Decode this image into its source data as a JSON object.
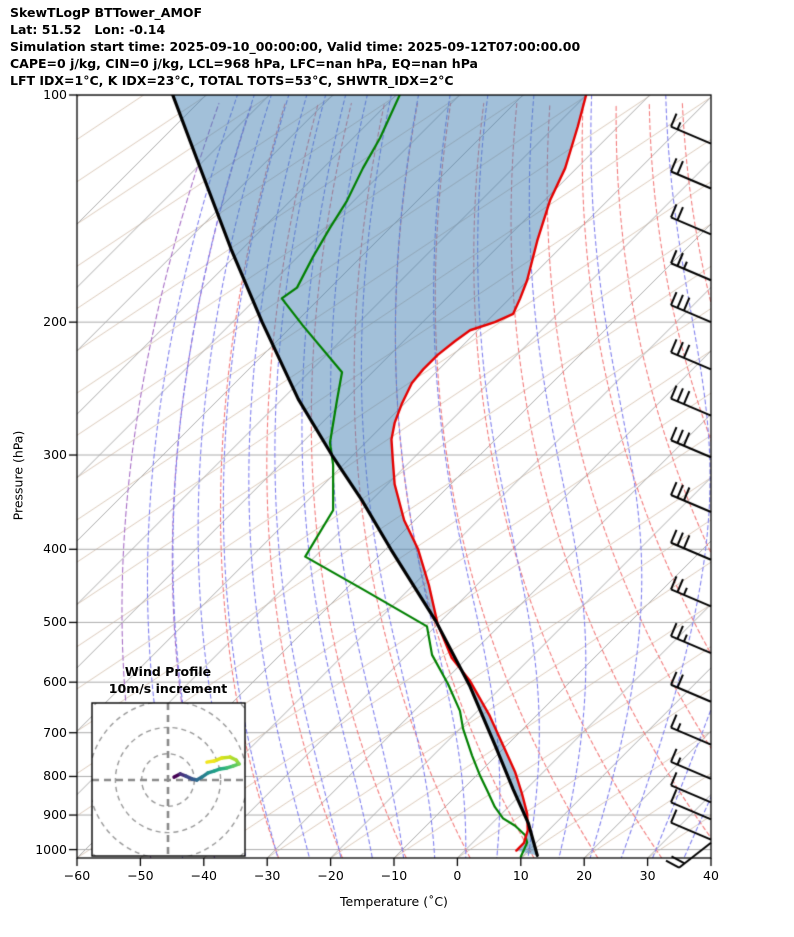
{
  "header": {
    "line1": "SkewTLogP BTTower_AMOF",
    "line2": "Lat: 51.52   Lon: -0.14",
    "line3": "Simulation start time: 2025-09-10_00:00:00, Valid time: 2025-09-12T07:00:00.00",
    "line4": "CAPE=0 j/kg, CIN=0 j/kg, LCL=968 hPa, LFC=nan hPa, EQ=nan hPa",
    "line5": "LFT IDX=1°C, K IDX=23°C, TOTAL TOTS=53°C, SHWTR_IDX=2°C"
  },
  "axes": {
    "y_label": "Pressure (hPa)",
    "x_label": "Temperature (˚C)",
    "y_ticks": [
      100,
      200,
      300,
      400,
      500,
      600,
      700,
      800,
      900,
      1000
    ],
    "x_ticks": [
      -60,
      -50,
      -40,
      -30,
      -20,
      -10,
      0,
      10,
      20,
      30,
      40
    ],
    "p_range": [
      100,
      1026
    ],
    "t_range": [
      -60,
      40
    ],
    "y_scale": "log"
  },
  "chart_data": {
    "type": "skewt-logp",
    "note": "curve points are [temperature_axis_value_C, pressure_hPa]; temperature value is the skewed x-axis coordinate directly below the point",
    "temperature_curve": [
      [
        20.3,
        100
      ],
      [
        19.0,
        110
      ],
      [
        17.0,
        125
      ],
      [
        14.6,
        138
      ],
      [
        12.6,
        156
      ],
      [
        11.0,
        176
      ],
      [
        9.9,
        186
      ],
      [
        8.8,
        195
      ],
      [
        5.9,
        200
      ],
      [
        2.0,
        205
      ],
      [
        -0.4,
        212
      ],
      [
        -3.1,
        221
      ],
      [
        -5.4,
        231
      ],
      [
        -7.2,
        241
      ],
      [
        -8.8,
        257
      ],
      [
        -9.9,
        272
      ],
      [
        -10.4,
        286
      ],
      [
        -10.2,
        304
      ],
      [
        -9.9,
        328
      ],
      [
        -8.4,
        366
      ],
      [
        -6.2,
        400
      ],
      [
        -4.5,
        446
      ],
      [
        -3.1,
        503
      ],
      [
        -0.9,
        557
      ],
      [
        2.0,
        598
      ],
      [
        5.1,
        665
      ],
      [
        7.5,
        737
      ],
      [
        9.1,
        789
      ],
      [
        10.2,
        844
      ],
      [
        11.0,
        896
      ],
      [
        11.1,
        943
      ],
      [
        10.5,
        980
      ],
      [
        9.3,
        1003
      ]
    ],
    "dewpoint_curve": [
      [
        -9.1,
        100
      ],
      [
        -12.2,
        114
      ],
      [
        -14.9,
        125
      ],
      [
        -17.4,
        138
      ],
      [
        -20.1,
        150
      ],
      [
        -22.8,
        164
      ],
      [
        -25.3,
        180
      ],
      [
        -27.7,
        186
      ],
      [
        -24.4,
        202
      ],
      [
        -18.2,
        233
      ],
      [
        -19.0,
        254
      ],
      [
        -20.1,
        289
      ],
      [
        -19.6,
        309
      ],
      [
        -19.6,
        355
      ],
      [
        -24.0,
        409
      ],
      [
        -14.9,
        452
      ],
      [
        -4.8,
        506
      ],
      [
        -4.0,
        552
      ],
      [
        -1.5,
        603
      ],
      [
        0.4,
        655
      ],
      [
        0.9,
        692
      ],
      [
        2.3,
        750
      ],
      [
        3.6,
        799
      ],
      [
        4.7,
        835
      ],
      [
        5.9,
        878
      ],
      [
        7.2,
        909
      ],
      [
        9.1,
        930
      ],
      [
        10.7,
        957
      ],
      [
        11.0,
        979
      ],
      [
        10.0,
        1022
      ]
    ],
    "parcel_curve": [
      [
        -44.9,
        100
      ],
      [
        -40.4,
        126
      ],
      [
        -35.7,
        160
      ],
      [
        -30.8,
        200
      ],
      [
        -25.1,
        253
      ],
      [
        -19.8,
        300
      ],
      [
        -15.1,
        344
      ],
      [
        -10.5,
        400
      ],
      [
        -3.4,
        498
      ],
      [
        2.0,
        608
      ],
      [
        5.9,
        726
      ],
      [
        8.8,
        832
      ],
      [
        11.2,
        923
      ],
      [
        12.6,
        1018
      ]
    ],
    "shading": {
      "between": [
        "parcel_curve",
        "temperature_curve"
      ],
      "color": "rgba(70,130,180,0.5)"
    },
    "wind_barbs": {
      "units": "m/s, full barb = 10, half barb = 5",
      "levels": [
        {
          "p": 116,
          "full": 1,
          "half": 1
        },
        {
          "p": 133,
          "full": 2,
          "half": 0
        },
        {
          "p": 153,
          "full": 2,
          "half": 0
        },
        {
          "p": 176,
          "full": 2,
          "half": 1
        },
        {
          "p": 200,
          "full": 3,
          "half": 0
        },
        {
          "p": 231,
          "full": 3,
          "half": 0
        },
        {
          "p": 266,
          "full": 3,
          "half": 0
        },
        {
          "p": 302,
          "full": 3,
          "half": 0
        },
        {
          "p": 357,
          "full": 3,
          "half": 0
        },
        {
          "p": 413,
          "full": 3,
          "half": 0
        },
        {
          "p": 476,
          "full": 2,
          "half": 1
        },
        {
          "p": 549,
          "full": 2,
          "half": 1
        },
        {
          "p": 637,
          "full": 2,
          "half": 0
        },
        {
          "p": 726,
          "full": 1,
          "half": 1
        },
        {
          "p": 806,
          "full": 1,
          "half": 1
        },
        {
          "p": 866,
          "full": 1,
          "half": 0
        },
        {
          "p": 912,
          "full": 1,
          "half": 0
        },
        {
          "p": 970,
          "full": 1,
          "half": 0
        },
        {
          "p": 1022,
          "full": 2,
          "half": 0,
          "rotated": true
        }
      ]
    },
    "gridlines": {
      "isobars": {
        "values": [
          100,
          200,
          300,
          400,
          500,
          600,
          700,
          800,
          900,
          1000
        ],
        "color": "#ababab"
      },
      "isotherms": {
        "start": -160,
        "end": 40,
        "step": 10,
        "color": "#ababab"
      },
      "dry_adiabats": {
        "start": -30,
        "end": 200,
        "step": 10,
        "color": "#f27d7d",
        "style": "dashed"
      },
      "moist_adiabats": {
        "start": -45,
        "end": 40,
        "step": 5,
        "color": "#8282ee",
        "style": "dashed"
      },
      "extra_adiabats": {
        "thetas": [
          -40,
          -50
        ],
        "color": "#a86fc6",
        "style": "dashed"
      },
      "tan_lines": {
        "start": -240,
        "end": 40,
        "step": 10,
        "color": "#d7c4b3",
        "style": "solid"
      }
    }
  },
  "hodograph": {
    "title_line1": "Wind Profile",
    "title_line2": "10m/s increment",
    "ring_increment_ms": 10,
    "rings_ms": [
      10,
      20,
      30,
      40
    ],
    "trace_uv_ms": [
      [
        2.3,
        1.1
      ],
      [
        4.6,
        2.3
      ],
      [
        6.8,
        1.5
      ],
      [
        9.1,
        0.4
      ],
      [
        11.0,
        0.0
      ],
      [
        12.9,
        1.1
      ],
      [
        15.2,
        2.7
      ],
      [
        17.5,
        3.4
      ],
      [
        19.8,
        4.2
      ],
      [
        22.4,
        4.6
      ],
      [
        24.7,
        5.3
      ],
      [
        27.0,
        6.1
      ],
      [
        25.9,
        7.6
      ],
      [
        23.6,
        8.7
      ],
      [
        20.5,
        8.4
      ],
      [
        17.5,
        7.2
      ],
      [
        14.8,
        6.8
      ]
    ],
    "trace_colors": [
      "#440154",
      "#46327e",
      "#3f4889",
      "#365c8d",
      "#2e6e8e",
      "#277f8e",
      "#21918c",
      "#1fa187",
      "#28ae80",
      "#3fbc73",
      "#5ec962",
      "#84d44b",
      "#a8db34",
      "#c5e021",
      "#dde318",
      "#f1e51d"
    ]
  },
  "colors": {
    "temperature": "#e50000",
    "dewpoint": "#008000",
    "parcel": "#000000",
    "fill": "rgba(70,130,180,0.5)",
    "spine": "#000000"
  }
}
